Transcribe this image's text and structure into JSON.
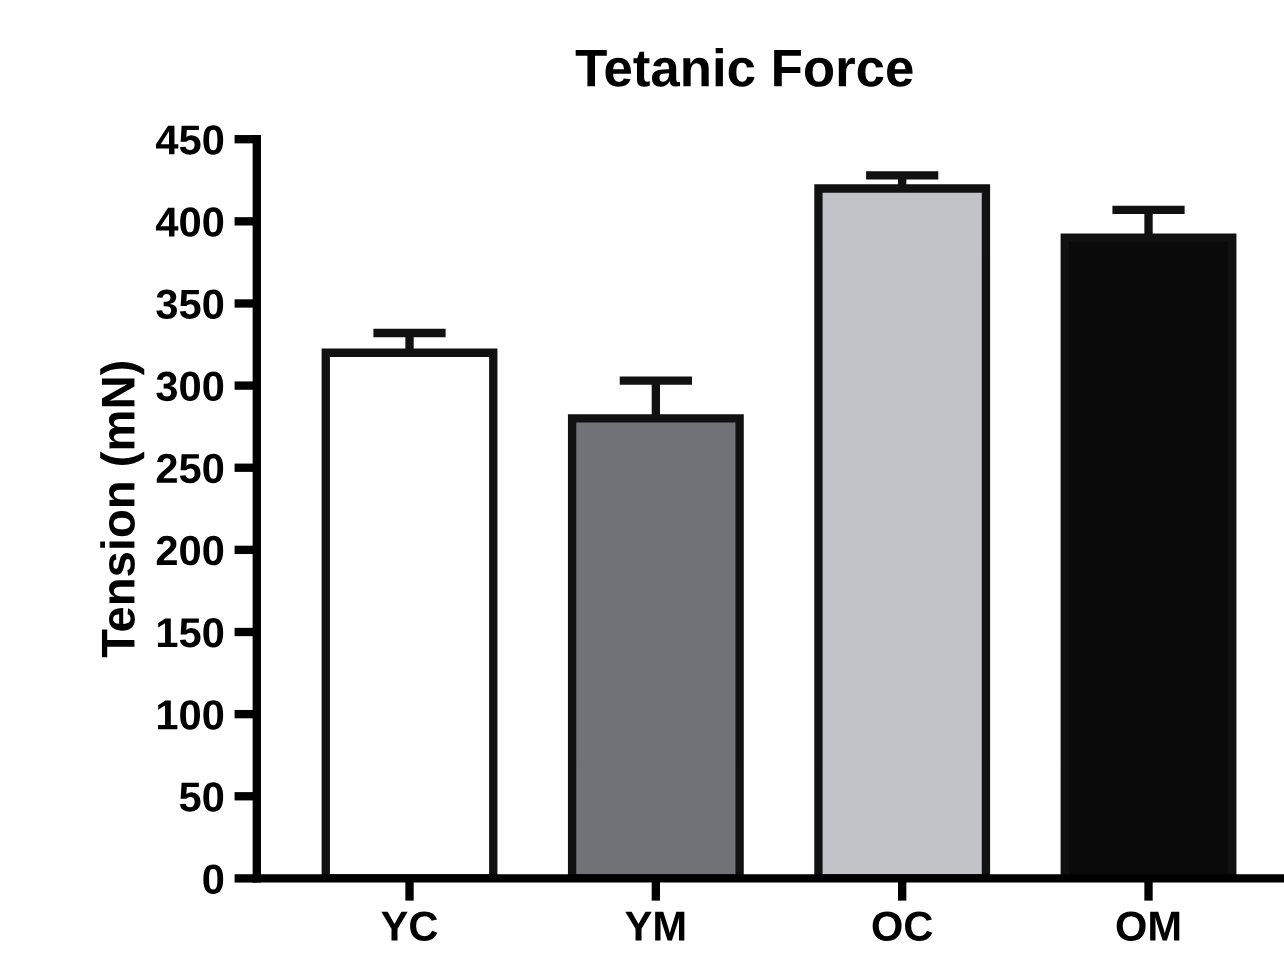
{
  "chart_data": {
    "type": "bar",
    "title": "Tetanic Force",
    "ylabel": "Tension (mN)",
    "categories": [
      "YC",
      "YM",
      "OC",
      "OM"
    ],
    "values": [
      320,
      280,
      420,
      390
    ],
    "errors": [
      12,
      23,
      8,
      17
    ],
    "colors": [
      "#ffffff",
      "#6f7378",
      "#c0c4c8",
      "#0a0a0a"
    ],
    "ylim": [
      0,
      450
    ],
    "yticks": [
      0,
      50,
      100,
      150,
      200,
      250,
      300,
      350,
      400,
      450
    ],
    "grid": false,
    "legend": false
  }
}
